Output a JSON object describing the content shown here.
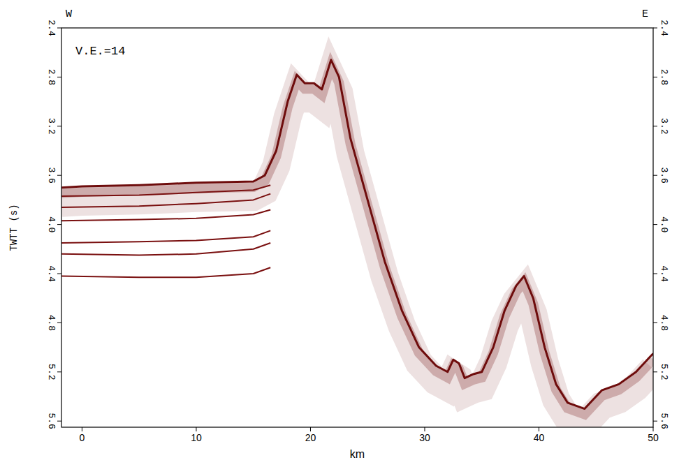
{
  "chart_data": {
    "type": "line",
    "x_label": "km",
    "y_label": "TWTT (s)",
    "annotations": {
      "left": "W",
      "right": "E",
      "note": "V.E.=14"
    },
    "xlim": [
      -1.8,
      50
    ],
    "xticks": [
      0,
      10,
      20,
      30,
      40,
      50
    ],
    "ylim": [
      2.4,
      5.65
    ],
    "yticks": [
      2.4,
      2.8,
      3.2,
      3.6,
      {
        "value": 4,
        "label": "4.0"
      },
      4.4,
      4.8,
      5.2,
      5.6
    ],
    "color": "#7a1010",
    "series": [
      {
        "color": "#6e0c0c",
        "x": [
          -1.8,
          0,
          5,
          10,
          15,
          16,
          17,
          18,
          18.8,
          19.5,
          20.3,
          21,
          21.8,
          22.5,
          23.5,
          25,
          26.5,
          28,
          29.5,
          31,
          32,
          32.5,
          33,
          33.5,
          34.2,
          35,
          36,
          37,
          38,
          38.7,
          39.5,
          40.5,
          41.5,
          42.5,
          44,
          45.5,
          47,
          48.5,
          50
        ],
        "values": [
          3.7,
          3.69,
          3.68,
          3.66,
          3.65,
          3.6,
          3.4,
          3.0,
          2.78,
          2.85,
          2.85,
          2.9,
          2.66,
          2.8,
          3.3,
          3.8,
          4.3,
          4.7,
          5.0,
          5.15,
          5.2,
          5.1,
          5.13,
          5.25,
          5.22,
          5.2,
          5.0,
          4.7,
          4.5,
          4.42,
          4.6,
          5.0,
          5.3,
          5.45,
          5.5,
          5.35,
          5.3,
          5.2,
          5.05
        ]
      },
      {
        "color": "#7a1010",
        "x": [
          -1.8,
          5,
          10,
          15,
          16.5
        ],
        "values": [
          3.77,
          3.76,
          3.74,
          3.72,
          3.68
        ]
      },
      {
        "color": "#7a1010",
        "x": [
          -1.8,
          5,
          10,
          15,
          16.5
        ],
        "values": [
          3.86,
          3.85,
          3.83,
          3.8,
          3.75
        ]
      },
      {
        "color": "#7a1010",
        "x": [
          -1.8,
          5,
          10,
          15,
          16.5
        ],
        "values": [
          3.97,
          3.96,
          3.95,
          3.92,
          3.88
        ]
      },
      {
        "color": "#7a1010",
        "x": [
          -1.8,
          5,
          10,
          15,
          16.5
        ],
        "values": [
          4.15,
          4.14,
          4.13,
          4.1,
          4.05
        ]
      },
      {
        "color": "#7a1010",
        "x": [
          -1.8,
          5,
          10,
          15,
          16.5
        ],
        "values": [
          4.24,
          4.25,
          4.24,
          4.2,
          4.15
        ]
      },
      {
        "color": "#7a1010",
        "x": [
          -1.8,
          5,
          10,
          15,
          16.5
        ],
        "values": [
          4.42,
          4.43,
          4.43,
          4.4,
          4.35
        ]
      }
    ]
  }
}
